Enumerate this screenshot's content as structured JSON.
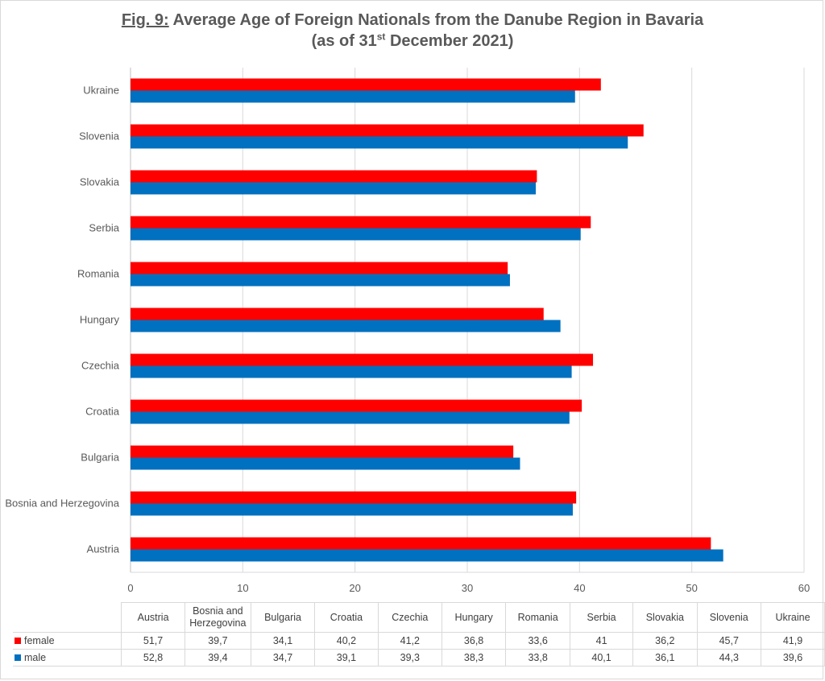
{
  "title": {
    "prefix": "Fig. 9:",
    "main": "Average Age of Foreign Nationals from the Danube Region in Bavaria",
    "line2_before": "(as of 31",
    "line2_sup": "st",
    "line2_after": " December 2021)"
  },
  "chart_data": {
    "type": "bar",
    "orientation": "horizontal",
    "categories": [
      "Austria",
      "Bosnia and Herzegovina",
      "Bulgaria",
      "Croatia",
      "Czechia",
      "Hungary",
      "Romania",
      "Serbia",
      "Slovakia",
      "Slovenia",
      "Ukraine"
    ],
    "category_order_in_plot": "bottom-to-top",
    "series": [
      {
        "name": "female",
        "color": "#ff0000",
        "values": [
          51.7,
          39.7,
          34.1,
          40.2,
          41.2,
          36.8,
          33.6,
          41,
          36.2,
          45.7,
          41.9
        ]
      },
      {
        "name": "male",
        "color": "#0070c0",
        "values": [
          52.8,
          39.4,
          34.7,
          39.1,
          39.3,
          38.3,
          33.8,
          40.1,
          36.1,
          44.3,
          39.6
        ]
      }
    ],
    "xlim": [
      0,
      60
    ],
    "xticks": [
      0,
      10,
      20,
      30,
      40,
      50,
      60
    ],
    "grid": "vertical",
    "legend": "data table below chart",
    "decimal_separator": ","
  },
  "table": {
    "header_display": [
      "Austria",
      "Bosnia and\nHerzegovina",
      "Bulgaria",
      "Croatia",
      "Czechia",
      "Hungary",
      "Romania",
      "Serbia",
      "Slovakia",
      "Slovenia",
      "Ukraine"
    ]
  }
}
